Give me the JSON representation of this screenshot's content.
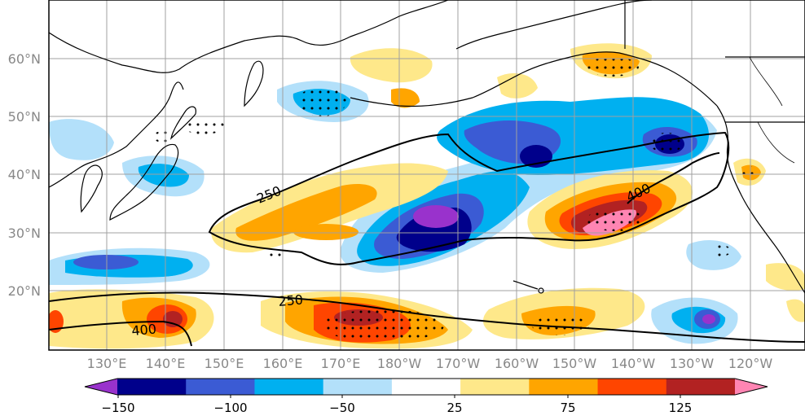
{
  "map": {
    "lat_labels": [
      "60°N",
      "50°N",
      "40°N",
      "30°N",
      "20°N"
    ],
    "lon_labels": [
      "130°E",
      "140°E",
      "150°E",
      "160°E",
      "170°E",
      "180°W",
      "170°W",
      "160°W",
      "150°W",
      "140°W",
      "130°W",
      "120°W"
    ],
    "contour_labels": [
      "250",
      "400",
      "250",
      "400"
    ]
  },
  "colorbar": {
    "tick_labels": [
      "−150",
      "−100",
      "−50",
      "25",
      "75",
      "125"
    ],
    "colors": [
      "#9932cc",
      "#00008b",
      "#3b5bd4",
      "#00b0f0",
      "#b3e0fa",
      "#ffffff",
      "#fee88a",
      "#ffa500",
      "#ff4500",
      "#b22222",
      "#ff85b3"
    ]
  }
}
